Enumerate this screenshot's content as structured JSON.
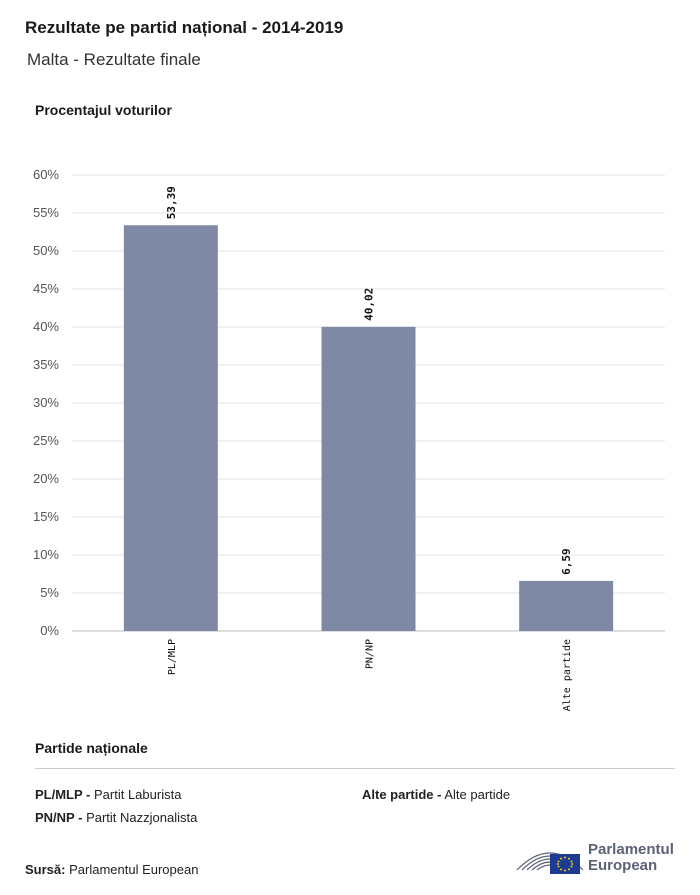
{
  "header": {
    "title": "Rezultate pe partid național - 2014-2019",
    "subtitle": "Malta - Rezultate finale"
  },
  "chart_data": {
    "type": "bar",
    "title": "Rezultate pe partid național - 2014-2019",
    "ylabel": "Procentajul voturilor",
    "xlabel": "",
    "categories": [
      "PL/MLP",
      "PN/NP",
      "Alte partide"
    ],
    "values": [
      53.39,
      40.02,
      6.59
    ],
    "value_labels": [
      "53,39",
      "40,02",
      "6,59"
    ],
    "ylim": [
      0,
      60
    ],
    "yticks": [
      "0%",
      "5%",
      "10%",
      "15%",
      "20%",
      "25%",
      "30%",
      "35%",
      "40%",
      "45%",
      "50%",
      "55%",
      "60%"
    ],
    "bar_color": "#7f89a6",
    "grid": true
  },
  "legend": {
    "title": "Partide naționale",
    "items": [
      {
        "code": "PL/MLP -",
        "name": "Partit Laburista"
      },
      {
        "code": "PN/NP -",
        "name": "Partit Nazzjonalista"
      },
      {
        "code": "Alte partide -",
        "name": "Alte partide"
      }
    ]
  },
  "footer": {
    "source_label": "Sursă:",
    "source_value": "Parlamentul European",
    "logo_line1": "Parlamentul",
    "logo_line2": "European",
    "logo_icon": "european-parliament-hemicycle-and-eu-flag-icon"
  }
}
